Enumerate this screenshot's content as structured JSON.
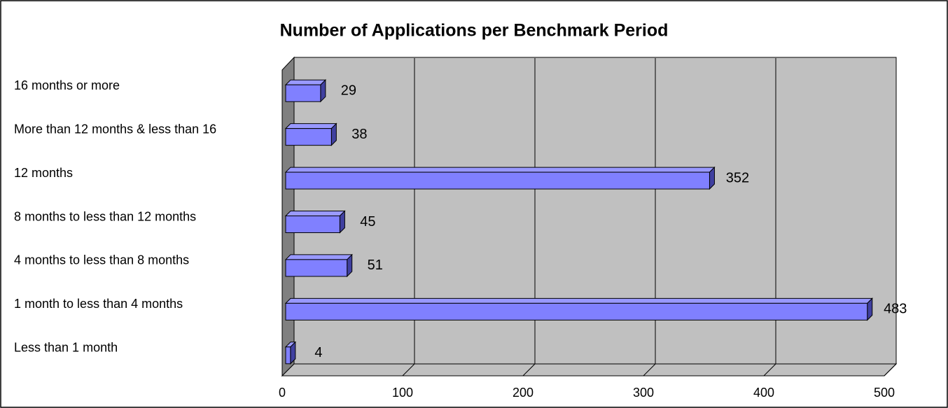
{
  "chart_data": {
    "type": "bar",
    "orientation": "horizontal",
    "title": "Number of Applications per Benchmark Period",
    "categories": [
      "16 months or more",
      "More than 12 months & less than 16",
      "12 months",
      "8 months to less than 12 months",
      "4 months to less than 8 months",
      "1 month to less than 4 months",
      "Less than 1 month"
    ],
    "values": [
      29,
      38,
      352,
      45,
      51,
      483,
      4
    ],
    "color": "#8080ff",
    "xlim": [
      0,
      500
    ],
    "xticks": [
      0,
      100,
      200,
      300,
      400,
      500
    ],
    "grid": true
  }
}
